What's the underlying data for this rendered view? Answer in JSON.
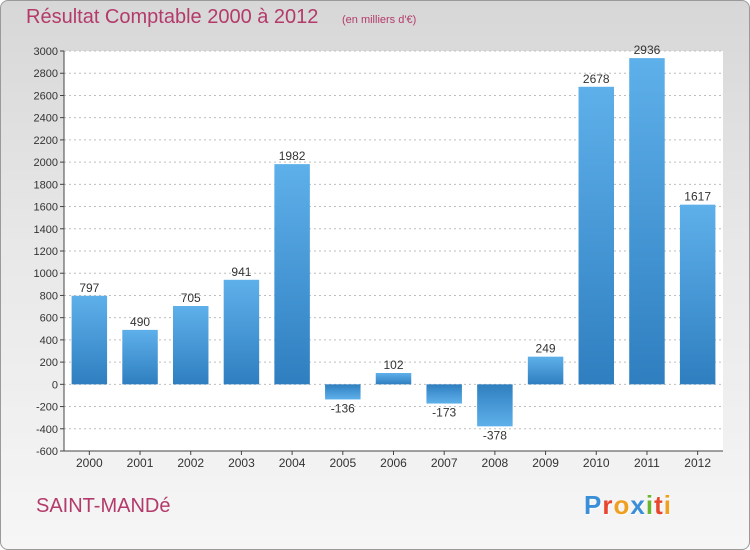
{
  "chart_data": {
    "type": "bar",
    "title": "Résultat Comptable 2000 à 2012",
    "subtitle": "(en milliers d'€)",
    "categories": [
      "2000",
      "2001",
      "2002",
      "2003",
      "2004",
      "2005",
      "2006",
      "2007",
      "2008",
      "2009",
      "2010",
      "2011",
      "2012"
    ],
    "values": [
      797,
      490,
      705,
      941,
      1982,
      -136,
      102,
      -173,
      -378,
      249,
      2678,
      2936,
      1617
    ],
    "data_labels": [
      "797",
      "490",
      "705",
      "941",
      "1982",
      "-136",
      "102",
      "-173",
      "-378",
      "249",
      "2678",
      "2936",
      "1617"
    ],
    "ylim": [
      -600,
      3000
    ],
    "yticks": [
      -600,
      -400,
      -200,
      0,
      200,
      400,
      600,
      800,
      1000,
      1200,
      1400,
      1600,
      1800,
      2000,
      2200,
      2400,
      2600,
      2800,
      3000
    ],
    "grid": true,
    "xlabel": "",
    "ylabel": "",
    "bar_color": "#4d9fdd"
  },
  "footer": {
    "city": "SAINT-MANDé",
    "brand": [
      "P",
      "r",
      "o",
      "x",
      "i",
      "t",
      "i"
    ],
    "brand_colors": [
      "#3a8fd8",
      "#e8462e",
      "#f0a020",
      "#3a8fd8",
      "#6ab62c",
      "#e8462e",
      "#f0a020"
    ]
  },
  "colors": {
    "title": "#b33a6a",
    "axis": "#444444",
    "grid": "#bdbdbd"
  }
}
